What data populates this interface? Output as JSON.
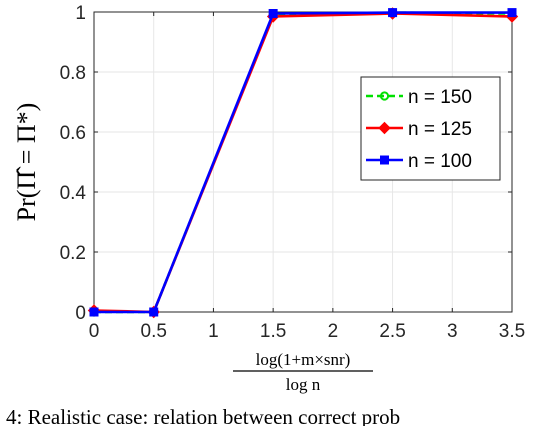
{
  "chart_data": {
    "type": "line",
    "title": "",
    "x": [
      0,
      0.5,
      1.5,
      2.5,
      3.5
    ],
    "xlim": [
      0,
      3.5
    ],
    "ylim": [
      0,
      1
    ],
    "xticks": [
      "0",
      "0.5",
      "1",
      "1.5",
      "2",
      "2.5",
      "3",
      "3.5"
    ],
    "yticks": [
      "0",
      "0.2",
      "0.4",
      "0.6",
      "0.8",
      "1"
    ],
    "xlabel_num": "log(1+m×snr)",
    "xlabel_den": "log n",
    "ylabel": "Pr(Π̂ = Π*)",
    "grid": true,
    "legend_position": "right",
    "series": [
      {
        "name": "n = 150",
        "color": "#00e000",
        "marker": "circle",
        "dash": "dashed",
        "values": [
          0,
          0,
          0.99,
          0.998,
          0.995
        ]
      },
      {
        "name": "n = 125",
        "color": "#ff0000",
        "marker": "diamond",
        "dash": "solid",
        "values": [
          0.005,
          0,
          0.985,
          0.995,
          0.985
        ]
      },
      {
        "name": "n = 100",
        "color": "#0000ff",
        "marker": "square",
        "dash": "solid",
        "values": [
          0,
          0,
          0.995,
          0.998,
          0.998
        ]
      }
    ]
  },
  "caption": "4: Realistic case: relation between correct prob"
}
